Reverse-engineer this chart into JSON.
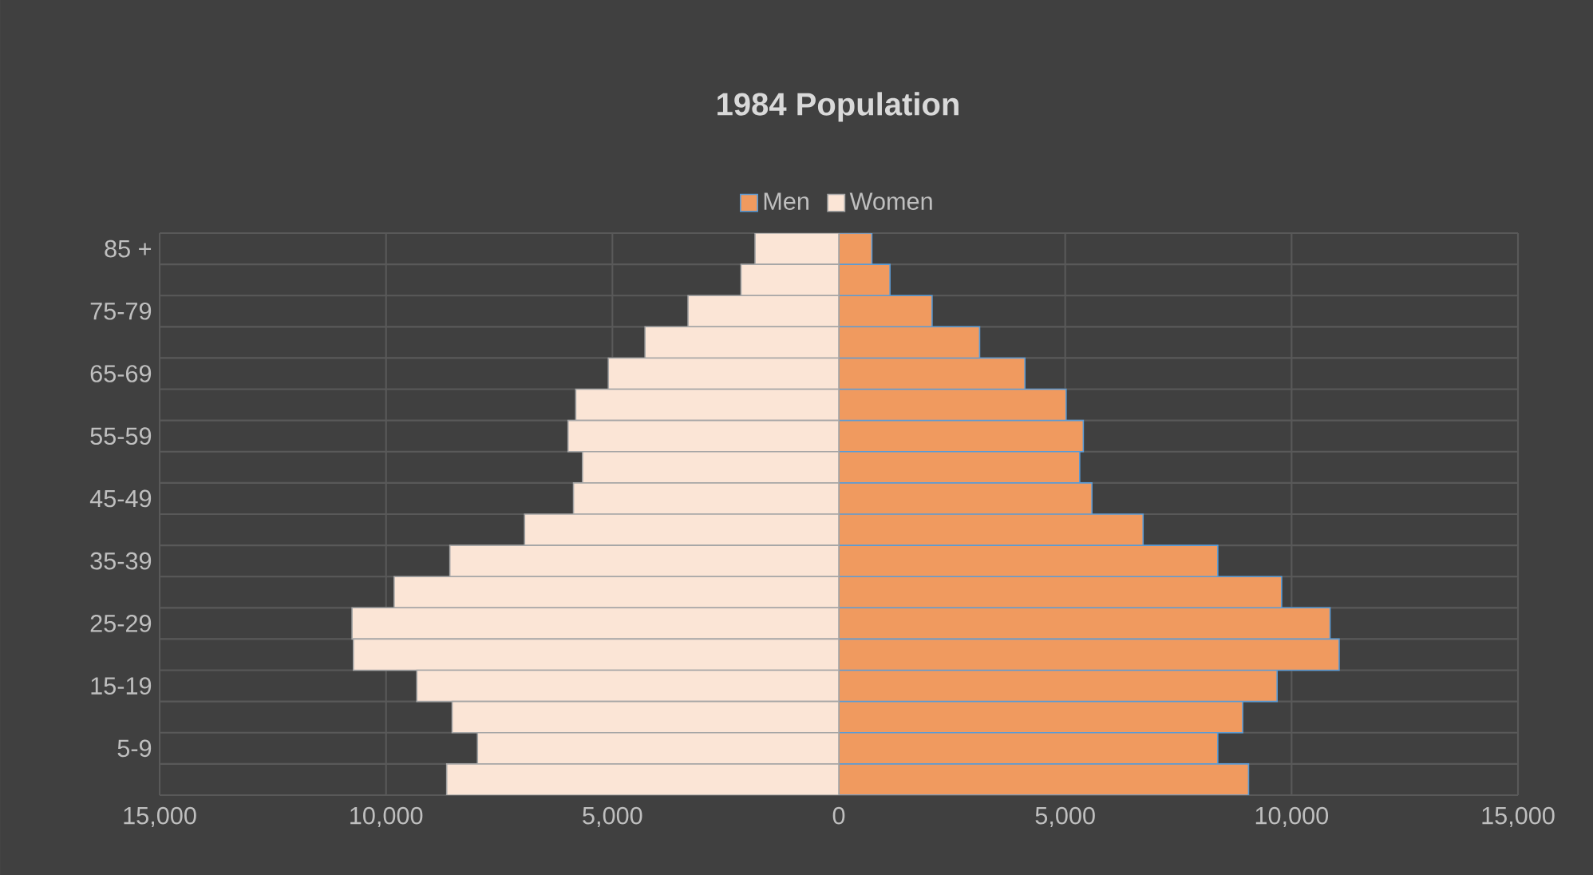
{
  "chart_data": {
    "type": "bar",
    "title": "1984 Population",
    "orientation": "horizontal",
    "categories": [
      "85 +",
      null,
      "75-79",
      null,
      "65-69",
      null,
      "55-59",
      null,
      "45-49",
      null,
      "35-39",
      null,
      "25-29",
      null,
      "15-19",
      null,
      "5-9",
      null
    ],
    "series": [
      {
        "name": "Men",
        "color": "#f09a5f",
        "values": [
          730,
          1130,
          2060,
          3110,
          4110,
          5020,
          5400,
          5320,
          5590,
          6720,
          8370,
          9780,
          10850,
          11050,
          9680,
          8920,
          8370,
          9050
        ]
      },
      {
        "name": "Women",
        "color": "#fbe5d6",
        "values": [
          -1850,
          -2160,
          -3330,
          -4280,
          -5090,
          -5810,
          -5980,
          -5660,
          -5860,
          -6940,
          -8590,
          -9820,
          -10750,
          -10720,
          -9320,
          -8540,
          -7980,
          -8660
        ]
      }
    ],
    "xlim": [
      -15000,
      15000
    ],
    "xticks": [
      {
        "value": -15000,
        "label": "15,000"
      },
      {
        "value": -10000,
        "label": "10,000"
      },
      {
        "value": -5000,
        "label": "5,000"
      },
      0,
      {
        "value": 5000,
        "label": "5,000"
      },
      {
        "value": 10000,
        "label": "10,000"
      },
      {
        "value": 15000,
        "label": "15,000"
      }
    ],
    "stacked": true,
    "grid": true,
    "legend": "top"
  }
}
